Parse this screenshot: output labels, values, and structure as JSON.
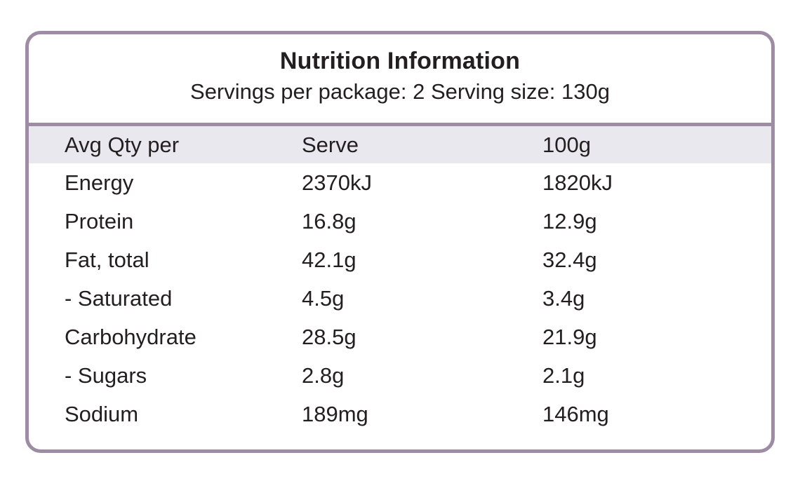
{
  "panel": {
    "title": "Nutrition Information",
    "subtitle": "Servings per package: 2 Serving size: 130g",
    "servings_per_package": "2",
    "serving_size": "130g",
    "colors": {
      "border": "#9d8ca4",
      "header_bg": "#eae8ef",
      "text": "#231f20"
    },
    "table": {
      "header": {
        "label": "Avg Qty per",
        "serve": "Serve",
        "per100g": "100g"
      },
      "rows": [
        {
          "label": "Energy",
          "serve": "2370kJ",
          "per100g": "1820kJ"
        },
        {
          "label": "Protein",
          "serve": "16.8g",
          "per100g": "12.9g"
        },
        {
          "label": "Fat, total",
          "serve": "42.1g",
          "per100g": "32.4g"
        },
        {
          "label": "- Saturated",
          "serve": "4.5g",
          "per100g": "3.4g"
        },
        {
          "label": "Carbohydrate",
          "serve": "28.5g",
          "per100g": "21.9g"
        },
        {
          "label": "- Sugars",
          "serve": "2.8g",
          "per100g": "2.1g"
        },
        {
          "label": "Sodium",
          "serve": "189mg",
          "per100g": "146mg"
        }
      ]
    }
  }
}
